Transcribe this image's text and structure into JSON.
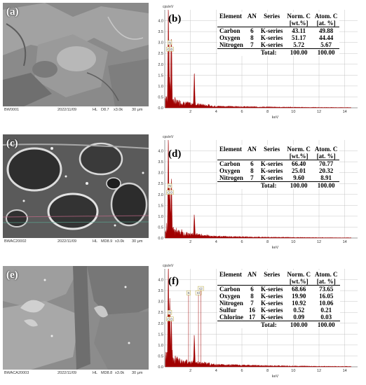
{
  "panels": [
    {
      "sem": {
        "letter": "(a)",
        "id": "BW0001",
        "date": "2022/11/09",
        "mode": "HL",
        "wd": "D8.7",
        "mag": "x3.0k",
        "scale": "30 μm"
      },
      "eds": {
        "letter": "(b)",
        "table": {
          "headers": [
            "Element",
            "AN",
            "Series",
            "Norm. C",
            "Atom. C"
          ],
          "subheaders": [
            "",
            "",
            "",
            "[wt.%]",
            "[at. %]"
          ],
          "rows": [
            [
              "Carbon",
              "6",
              "K-series",
              "43.11",
              "49.88"
            ],
            [
              "Oxygen",
              "8",
              "K-series",
              "51.17",
              "44.44"
            ],
            [
              "Nitrogen",
              "7",
              "K-series",
              "5.72",
              "5.67"
            ]
          ],
          "total": [
            "Total:",
            "100.00",
            "100.00"
          ]
        }
      }
    },
    {
      "sem": {
        "letter": "(c)",
        "id": "BWAC20002",
        "date": "2022/11/09",
        "mode": "HL",
        "wd": "MD8.9",
        "mag": "x3.0k",
        "scale": "30 μm"
      },
      "eds": {
        "letter": "(d)",
        "table": {
          "headers": [
            "Element",
            "AN",
            "Series",
            "Norm. C",
            "Atom. C"
          ],
          "subheaders": [
            "",
            "",
            "",
            "[wt.%]",
            "[at. %]"
          ],
          "rows": [
            [
              "Carbon",
              "6",
              "K-series",
              "66.40",
              "70.77"
            ],
            [
              "Oxygen",
              "8",
              "K-series",
              "25.01",
              "20.32"
            ],
            [
              "Nitrogen",
              "7",
              "K-series",
              "9.60",
              "8.91"
            ]
          ],
          "total": [
            "Total:",
            "100.00",
            "100.00"
          ]
        }
      }
    },
    {
      "sem": {
        "letter": "(e)",
        "id": "BWACA20003",
        "date": "2022/11/09",
        "mode": "HL",
        "wd": "MD8.8",
        "mag": "x3.0k",
        "scale": "30 μm"
      },
      "eds": {
        "letter": "(f)",
        "table": {
          "headers": [
            "Element",
            "AN",
            "Series",
            "Norm. C",
            "Atom. C"
          ],
          "subheaders": [
            "",
            "",
            "",
            "[wt.%]",
            "[at. %]"
          ],
          "rows": [
            [
              "Carbon",
              "6",
              "K-series",
              "68.66",
              "73.65"
            ],
            [
              "Oxygen",
              "8",
              "K-series",
              "19.90",
              "16.05"
            ],
            [
              "Nitrogen",
              "7",
              "K-series",
              "10.92",
              "10.06"
            ],
            [
              "Sulfur",
              "16",
              "K-series",
              "0.52",
              "0.21"
            ],
            [
              "Chlorine",
              "17",
              "K-series",
              "0.09",
              "0.03"
            ]
          ],
          "total": [
            "Total:",
            "100.00",
            "100.00"
          ]
        }
      }
    }
  ],
  "chart_data": [
    {
      "type": "line",
      "panel": "(b)",
      "ylabel": "cps/eV",
      "xlabel": "keV",
      "xlim": [
        0,
        15
      ],
      "ylim": [
        0,
        4.5
      ],
      "xticks": [
        2,
        4,
        6,
        8,
        10,
        12,
        14
      ],
      "yticks": [
        0.0,
        0.5,
        1.0,
        1.5,
        2.0,
        2.5,
        3.0,
        3.5,
        4.0
      ],
      "peaks": [
        {
          "x": 0.28,
          "y": 4.3
        },
        {
          "x": 0.39,
          "y": 1.0
        },
        {
          "x": 0.52,
          "y": 3.0
        },
        {
          "x": 2.3,
          "y": 1.5
        }
      ],
      "peak_labels": [
        {
          "label": "N",
          "x": 0.39,
          "y": 2.9
        },
        {
          "label": "C",
          "x": 0.28,
          "y": 2.6
        },
        {
          "label": "O",
          "x": 0.52,
          "y": 2.6
        }
      ],
      "background": 0.15
    },
    {
      "type": "line",
      "panel": "(d)",
      "ylabel": "cps/eV",
      "xlabel": "keV",
      "xlim": [
        0,
        15
      ],
      "ylim": [
        0,
        4.5
      ],
      "xticks": [
        2,
        4,
        6,
        8,
        10,
        12,
        14
      ],
      "yticks": [
        0.0,
        0.5,
        1.0,
        1.5,
        2.0,
        2.5,
        3.0,
        3.5,
        4.0
      ],
      "peaks": [
        {
          "x": 0.28,
          "y": 4.4
        },
        {
          "x": 0.39,
          "y": 2.0
        },
        {
          "x": 0.52,
          "y": 2.4
        },
        {
          "x": 2.3,
          "y": 0.9
        }
      ],
      "peak_labels": [
        {
          "label": "N",
          "x": 0.39,
          "y": 2.3
        },
        {
          "label": "C",
          "x": 0.28,
          "y": 2.0
        },
        {
          "label": "O",
          "x": 0.52,
          "y": 2.0
        }
      ],
      "background": 0.15
    },
    {
      "type": "line",
      "panel": "(f)",
      "ylabel": "cps/eV",
      "xlabel": "keV",
      "xlim": [
        0,
        15
      ],
      "ylim": [
        0,
        4.5
      ],
      "xticks": [
        2,
        4,
        6,
        8,
        10,
        12,
        14
      ],
      "yticks": [
        0.0,
        0.5,
        1.0,
        1.5,
        2.0,
        2.5,
        3.0,
        3.5,
        4.0
      ],
      "peaks": [
        {
          "x": 0.28,
          "y": 4.4
        },
        {
          "x": 0.39,
          "y": 2.6
        },
        {
          "x": 0.52,
          "y": 1.8
        },
        {
          "x": 2.3,
          "y": 1.3
        }
      ],
      "peak_labels": [
        {
          "label": "N",
          "x": 0.39,
          "y": 2.4
        },
        {
          "label": "C",
          "x": 0.28,
          "y": 2.1
        },
        {
          "label": "O",
          "x": 0.52,
          "y": 2.1
        },
        {
          "label": "Cl",
          "x": 2.62,
          "y": 3.3
        },
        {
          "label": "S",
          "x": 1.85,
          "y": 3.3
        },
        {
          "label": "Cl",
          "x": 2.8,
          "y": 3.5
        }
      ],
      "background": 0.2
    }
  ],
  "colors": {
    "spectrum": "#a00000",
    "grid": "#b8b8b8",
    "axis": "#555555",
    "label_box": "#b6a43a"
  }
}
